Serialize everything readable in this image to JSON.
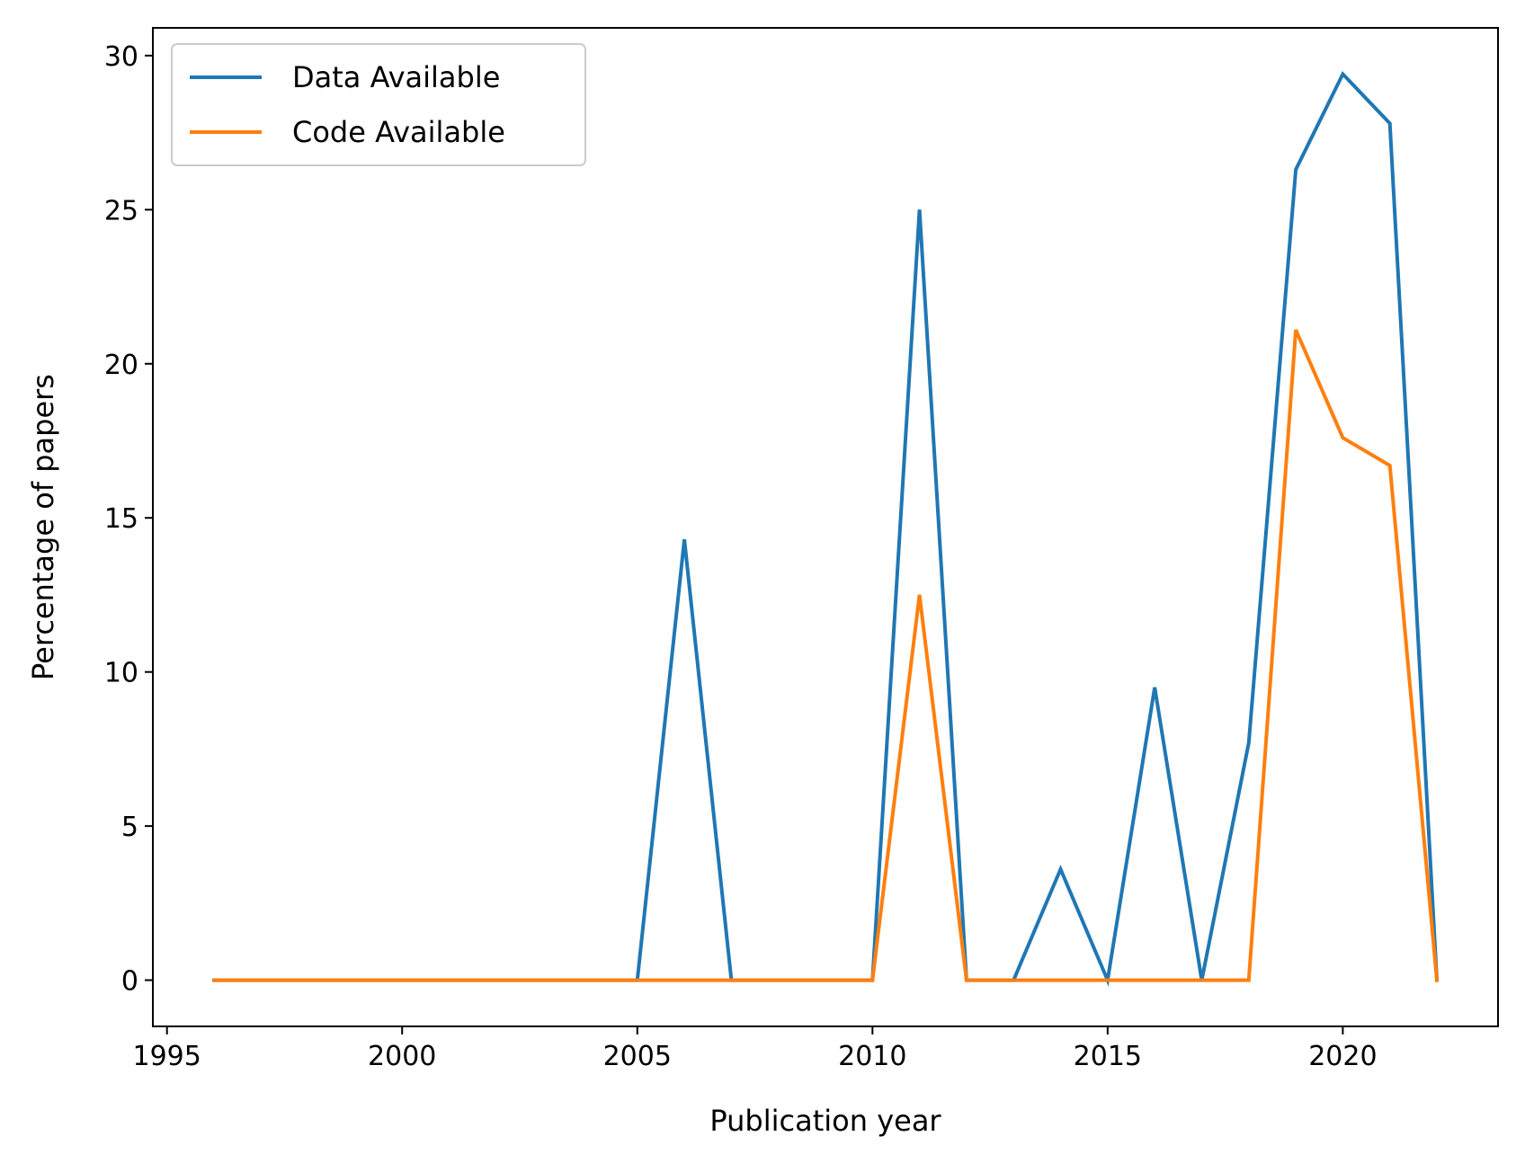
{
  "chart_data": {
    "type": "line",
    "title": "",
    "xlabel": "Publication year",
    "ylabel": "Percentage of papers",
    "xlim": [
      1994.7,
      2023.3
    ],
    "ylim": [
      -1.5,
      30.9
    ],
    "xticks": [
      1995,
      2000,
      2005,
      2010,
      2015,
      2020
    ],
    "yticks": [
      0,
      5,
      10,
      15,
      20,
      25,
      30
    ],
    "grid": false,
    "legend_position": "top-left",
    "x": [
      1996,
      1997,
      1998,
      1999,
      2000,
      2001,
      2002,
      2003,
      2004,
      2005,
      2006,
      2007,
      2008,
      2009,
      2010,
      2011,
      2012,
      2013,
      2014,
      2015,
      2016,
      2017,
      2018,
      2019,
      2020,
      2021,
      2022
    ],
    "series": [
      {
        "name": "Data Available",
        "color": "#1f77b4",
        "values": [
          0,
          0,
          0,
          0,
          0,
          0,
          0,
          0,
          0,
          0,
          14.3,
          0,
          0,
          0,
          0,
          25.0,
          0,
          0,
          3.6,
          0,
          9.5,
          0,
          7.7,
          26.3,
          29.4,
          27.8,
          0
        ]
      },
      {
        "name": "Code Available",
        "color": "#ff7f0e",
        "values": [
          0,
          0,
          0,
          0,
          0,
          0,
          0,
          0,
          0,
          0,
          0,
          0,
          0,
          0,
          0,
          12.5,
          0,
          0,
          0,
          0,
          0,
          0,
          0,
          21.1,
          17.6,
          16.7,
          0
        ]
      }
    ]
  }
}
